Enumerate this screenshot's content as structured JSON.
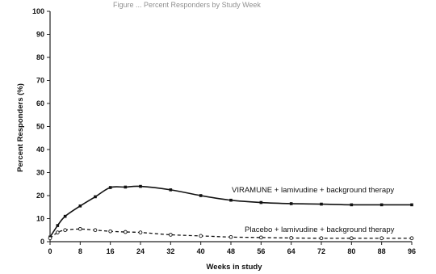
{
  "header_fragment": "Figure ... Percent Responders by Study Week",
  "chart_data": {
    "type": "line",
    "xlabel": "Weeks in study",
    "ylabel": "Percent Responders (%)",
    "xlim": [
      0,
      96
    ],
    "ylim": [
      0,
      100
    ],
    "x_ticks": [
      0,
      8,
      16,
      24,
      32,
      40,
      48,
      56,
      64,
      72,
      80,
      88,
      96
    ],
    "y_ticks": [
      0,
      10,
      20,
      30,
      40,
      50,
      60,
      70,
      80,
      90,
      100
    ],
    "grid": false,
    "series": [
      {
        "name": "VIRAMUNE + lamivudine + background therapy",
        "style": "solid-filled-markers",
        "color": "#111111",
        "x": [
          0,
          2,
          4,
          8,
          12,
          16,
          20,
          24,
          32,
          40,
          48,
          56,
          64,
          72,
          80,
          88,
          96
        ],
        "y": [
          2,
          7,
          11,
          15.5,
          19.5,
          23.5,
          23.7,
          24,
          22.5,
          20,
          18,
          17,
          16.5,
          16.3,
          16,
          16,
          16
        ]
      },
      {
        "name": "Placebo + lamivudine + background therapy",
        "style": "dashed-open-markers",
        "color": "#111111",
        "x": [
          0,
          2,
          4,
          8,
          12,
          16,
          20,
          24,
          32,
          40,
          48,
          56,
          64,
          72,
          80,
          88,
          96
        ],
        "y": [
          1.5,
          4,
          5,
          5.5,
          5,
          4.5,
          4.2,
          4,
          3,
          2.5,
          2,
          1.8,
          1.6,
          1.5,
          1.5,
          1.5,
          1.5
        ]
      }
    ]
  }
}
